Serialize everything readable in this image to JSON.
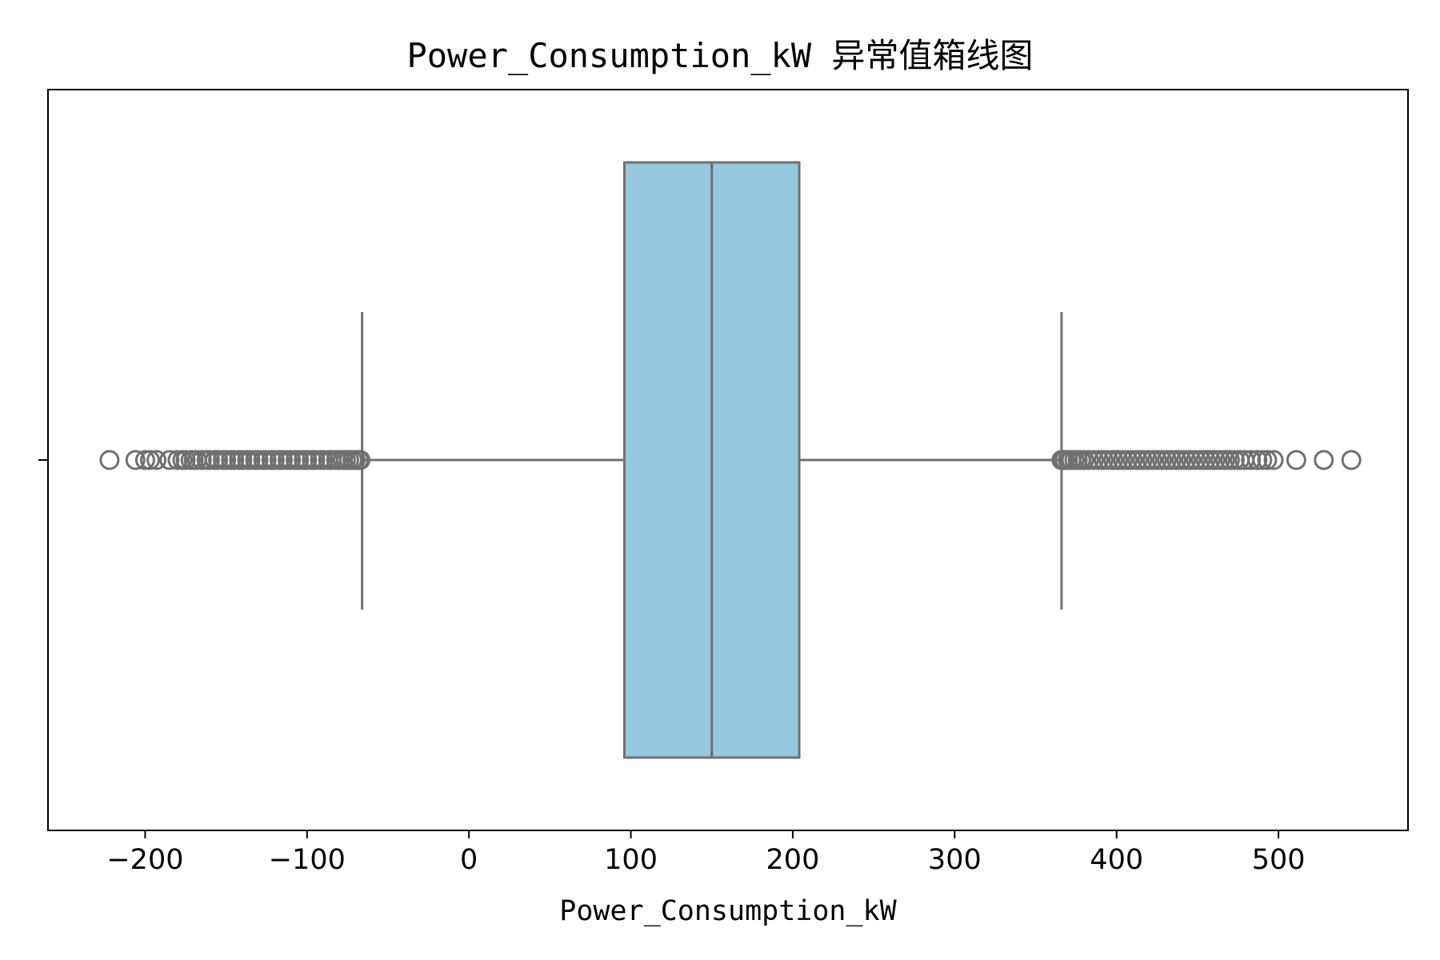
{
  "chart_data": {
    "type": "box",
    "title": "Power_Consumption_kW 异常值箱线图",
    "xlabel": "Power_Consumption_kW",
    "ylabel": "",
    "xlim": [
      -260,
      580
    ],
    "xticks": [
      -200,
      -100,
      0,
      100,
      200,
      300,
      400,
      500
    ],
    "xtick_labels": [
      "−200",
      "−100",
      "0",
      "100",
      "200",
      "300",
      "400",
      "500"
    ],
    "grid": false,
    "box": {
      "whisker_low": -66,
      "q1": 96,
      "median": 150,
      "q3": 204,
      "whisker_high": 366,
      "fill_color": "#95c8de",
      "edge_color": "#707070"
    },
    "outliers_low": [
      -222,
      -206,
      -200,
      -197,
      -193,
      -185,
      -180,
      -177,
      -175,
      -172,
      -170,
      -168,
      -165,
      -162,
      -160,
      -157,
      -155,
      -152,
      -150,
      -147,
      -145,
      -142,
      -140,
      -137,
      -135,
      -132,
      -130,
      -127,
      -125,
      -122,
      -120,
      -117,
      -115,
      -112,
      -110,
      -107,
      -105,
      -102,
      -100,
      -97,
      -95,
      -92,
      -90,
      -87,
      -85,
      -82,
      -80,
      -78,
      -76,
      -74,
      -72,
      -70,
      -68,
      -67
    ],
    "outliers_high": [
      366,
      367,
      368,
      370,
      372,
      374,
      376,
      378,
      380,
      383,
      386,
      389,
      392,
      395,
      398,
      401,
      404,
      407,
      410,
      413,
      416,
      419,
      422,
      425,
      428,
      431,
      434,
      437,
      440,
      443,
      446,
      449,
      452,
      455,
      458,
      461,
      464,
      467,
      470,
      473,
      476,
      479,
      483,
      487,
      490,
      493,
      497,
      511,
      528,
      545
    ]
  }
}
